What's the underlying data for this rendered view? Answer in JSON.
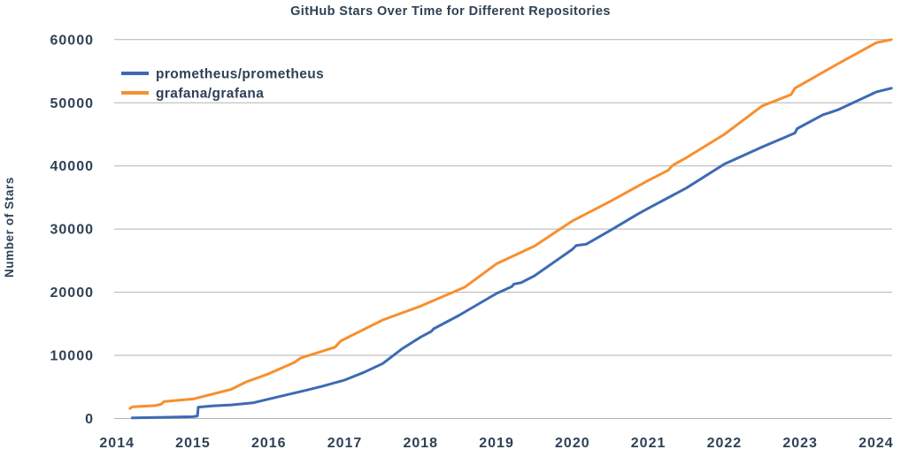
{
  "title": "GitHub Stars Over Time for Different Repositories",
  "colors": {
    "text": "#2e4156",
    "grid": "#b3b3b3",
    "background": "#ffffff",
    "prometheus_blue": "#3d6bb3",
    "grafana_orange": "#f78f2e"
  },
  "chart_data": {
    "type": "line",
    "title": "GitHub Stars Over Time for Different Repositories",
    "xlabel": "",
    "ylabel": "Number of Stars",
    "grid": "horizontal",
    "legend_position": "upper-left",
    "x_ticks": [
      2014,
      2015,
      2016,
      2017,
      2018,
      2019,
      2020,
      2021,
      2022,
      2023,
      2024
    ],
    "y_ticks": [
      0,
      10000,
      20000,
      30000,
      40000,
      50000,
      60000
    ],
    "xlim": [
      2013.96,
      2024.21
    ],
    "ylim": [
      0,
      62000
    ],
    "series": [
      {
        "name": "prometheus/prometheus",
        "color": "#3d6bb3",
        "points": [
          [
            2014.2,
            100
          ],
          [
            2014.6,
            200
          ],
          [
            2015.0,
            300
          ],
          [
            2015.06,
            400
          ],
          [
            2015.07,
            1800
          ],
          [
            2015.25,
            2000
          ],
          [
            2015.5,
            2150
          ],
          [
            2015.8,
            2500
          ],
          [
            2016.0,
            3100
          ],
          [
            2016.5,
            4500
          ],
          [
            2016.7,
            5100
          ],
          [
            2017.0,
            6100
          ],
          [
            2017.25,
            7300
          ],
          [
            2017.5,
            8700
          ],
          [
            2017.75,
            11000
          ],
          [
            2018.0,
            12900
          ],
          [
            2018.14,
            13800
          ],
          [
            2018.17,
            14200
          ],
          [
            2018.5,
            16300
          ],
          [
            2019.0,
            19800
          ],
          [
            2019.2,
            20900
          ],
          [
            2019.23,
            21300
          ],
          [
            2019.32,
            21500
          ],
          [
            2019.5,
            22600
          ],
          [
            2020.0,
            26800
          ],
          [
            2020.05,
            27400
          ],
          [
            2020.18,
            27600
          ],
          [
            2020.5,
            29800
          ],
          [
            2020.85,
            32300
          ],
          [
            2021.0,
            33300
          ],
          [
            2021.5,
            36500
          ],
          [
            2022.0,
            40300
          ],
          [
            2022.5,
            43000
          ],
          [
            2022.93,
            45200
          ],
          [
            2022.96,
            45900
          ],
          [
            2023.3,
            48100
          ],
          [
            2023.38,
            48400
          ],
          [
            2023.5,
            48900
          ],
          [
            2024.0,
            51700
          ],
          [
            2024.2,
            52300
          ]
        ]
      },
      {
        "name": "grafana/grafana",
        "color": "#f78f2e",
        "points": [
          [
            2014.17,
            1600
          ],
          [
            2014.2,
            1850
          ],
          [
            2014.5,
            2050
          ],
          [
            2014.58,
            2250
          ],
          [
            2014.62,
            2700
          ],
          [
            2015.0,
            3100
          ],
          [
            2015.5,
            4600
          ],
          [
            2015.7,
            5800
          ],
          [
            2016.0,
            7100
          ],
          [
            2016.34,
            8900
          ],
          [
            2016.42,
            9600
          ],
          [
            2016.87,
            11300
          ],
          [
            2016.95,
            12300
          ],
          [
            2017.5,
            15600
          ],
          [
            2018.0,
            17800
          ],
          [
            2018.58,
            20800
          ],
          [
            2019.0,
            24500
          ],
          [
            2019.5,
            27300
          ],
          [
            2020.0,
            31300
          ],
          [
            2020.5,
            34400
          ],
          [
            2021.0,
            37700
          ],
          [
            2021.26,
            39300
          ],
          [
            2021.32,
            40100
          ],
          [
            2021.5,
            41300
          ],
          [
            2022.0,
            45000
          ],
          [
            2022.5,
            49500
          ],
          [
            2022.88,
            51300
          ],
          [
            2022.93,
            52300
          ],
          [
            2023.5,
            56200
          ],
          [
            2024.0,
            59500
          ],
          [
            2024.2,
            60000
          ]
        ]
      }
    ]
  }
}
